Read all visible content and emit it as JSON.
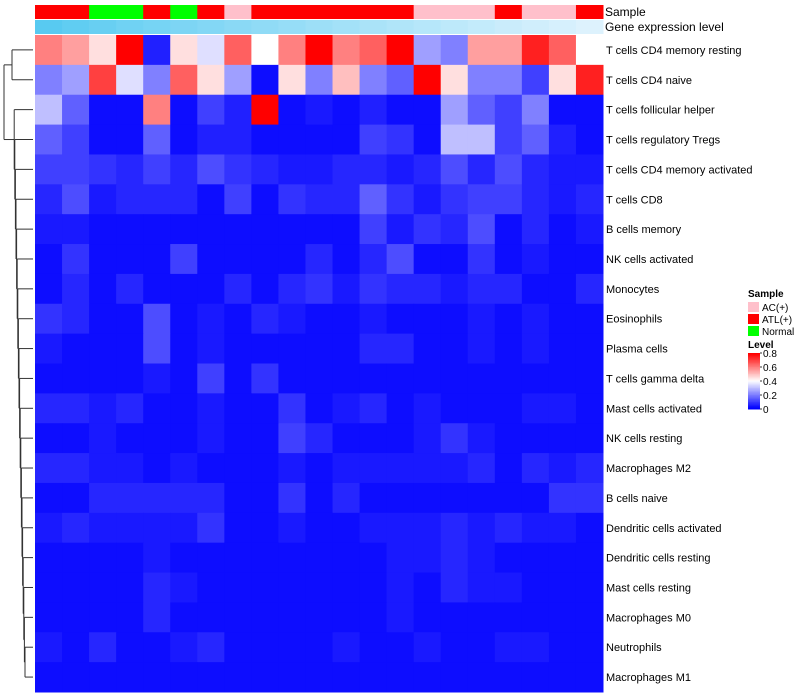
{
  "chart_data": {
    "type": "heatmap",
    "title": "",
    "annotation_tracks": [
      "Sample",
      "Gene expression level"
    ],
    "rows": [
      "T cells CD4 memory resting",
      "T cells CD4 naive",
      "T cells follicular helper",
      "T cells regulatory  Tregs",
      "T cells CD4 memory activated",
      "T cells CD8",
      "B cells memory",
      "NK cells activated",
      "Monocytes",
      "Eosinophils",
      "Plasma cells",
      "T cells gamma delta",
      "Mast cells activated",
      "NK cells resting",
      "Macrophages M2",
      "B cells naive",
      "Dendritic cells activated",
      "Dendritic cells resting",
      "Mast cells resting",
      "Macrophages M0",
      "Neutrophils",
      "Macrophages M1"
    ],
    "sample_groups": [
      "ATL",
      "ATL",
      "Normal",
      "Normal",
      "ATL",
      "Normal",
      "ATL",
      "AC",
      "ATL",
      "ATL",
      "ATL",
      "ATL",
      "ATL",
      "ATL",
      "AC",
      "AC",
      "AC",
      "ATL",
      "AC",
      "AC",
      "ATL"
    ],
    "expression_levels": [
      0.95,
      0.9,
      0.85,
      0.8,
      0.76,
      0.72,
      0.68,
      0.64,
      0.6,
      0.56,
      0.52,
      0.48,
      0.44,
      0.4,
      0.36,
      0.32,
      0.28,
      0.24,
      0.2,
      0.16,
      0.12
    ],
    "values": [
      [
        0.6,
        0.55,
        0.45,
        0.8,
        0.05,
        0.45,
        0.35,
        0.65,
        0.4,
        0.6,
        0.8,
        0.6,
        0.65,
        0.8,
        0.25,
        0.2,
        0.55,
        0.55,
        0.75,
        0.65,
        0.4
      ],
      [
        0.2,
        0.25,
        0.7,
        0.35,
        0.2,
        0.65,
        0.45,
        0.25,
        0.02,
        0.45,
        0.2,
        0.5,
        0.2,
        0.15,
        0.8,
        0.45,
        0.2,
        0.2,
        0.1,
        0.45,
        0.75
      ],
      [
        0.3,
        0.15,
        0.02,
        0.02,
        0.6,
        0.02,
        0.1,
        0.05,
        0.8,
        0.02,
        0.04,
        0.02,
        0.05,
        0.02,
        0.02,
        0.25,
        0.15,
        0.1,
        0.2,
        0.02,
        0.02
      ],
      [
        0.15,
        0.1,
        0.02,
        0.02,
        0.15,
        0.02,
        0.05,
        0.05,
        0.02,
        0.02,
        0.02,
        0.02,
        0.1,
        0.08,
        0.02,
        0.3,
        0.3,
        0.1,
        0.15,
        0.05,
        0.02
      ],
      [
        0.1,
        0.1,
        0.08,
        0.06,
        0.1,
        0.06,
        0.12,
        0.08,
        0.06,
        0.04,
        0.04,
        0.06,
        0.06,
        0.04,
        0.06,
        0.12,
        0.06,
        0.12,
        0.06,
        0.04,
        0.04
      ],
      [
        0.06,
        0.12,
        0.04,
        0.06,
        0.06,
        0.06,
        0.02,
        0.1,
        0.02,
        0.08,
        0.06,
        0.06,
        0.15,
        0.08,
        0.04,
        0.08,
        0.1,
        0.1,
        0.06,
        0.04,
        0.06
      ],
      [
        0.04,
        0.04,
        0.02,
        0.02,
        0.02,
        0.02,
        0.02,
        0.02,
        0.02,
        0.02,
        0.02,
        0.02,
        0.1,
        0.04,
        0.08,
        0.06,
        0.12,
        0.02,
        0.06,
        0.02,
        0.04
      ],
      [
        0.02,
        0.08,
        0.02,
        0.02,
        0.02,
        0.1,
        0.02,
        0.02,
        0.02,
        0.02,
        0.06,
        0.02,
        0.06,
        0.12,
        0.02,
        0.02,
        0.08,
        0.02,
        0.04,
        0.02,
        0.02
      ],
      [
        0.02,
        0.06,
        0.02,
        0.06,
        0.02,
        0.02,
        0.02,
        0.06,
        0.02,
        0.06,
        0.08,
        0.04,
        0.08,
        0.06,
        0.06,
        0.04,
        0.06,
        0.06,
        0.02,
        0.02,
        0.06
      ],
      [
        0.08,
        0.06,
        0.02,
        0.02,
        0.12,
        0.02,
        0.04,
        0.02,
        0.06,
        0.04,
        0.02,
        0.02,
        0.04,
        0.02,
        0.02,
        0.02,
        0.04,
        0.02,
        0.04,
        0.02,
        0.02
      ],
      [
        0.04,
        0.02,
        0.02,
        0.02,
        0.12,
        0.02,
        0.04,
        0.02,
        0.02,
        0.02,
        0.02,
        0.02,
        0.06,
        0.06,
        0.02,
        0.02,
        0.04,
        0.02,
        0.04,
        0.02,
        0.02
      ],
      [
        0.02,
        0.02,
        0.02,
        0.02,
        0.04,
        0.02,
        0.1,
        0.02,
        0.08,
        0.02,
        0.02,
        0.02,
        0.02,
        0.02,
        0.02,
        0.02,
        0.02,
        0.02,
        0.02,
        0.02,
        0.02
      ],
      [
        0.06,
        0.06,
        0.04,
        0.06,
        0.02,
        0.02,
        0.04,
        0.02,
        0.02,
        0.08,
        0.02,
        0.04,
        0.06,
        0.02,
        0.04,
        0.02,
        0.02,
        0.02,
        0.04,
        0.04,
        0.02
      ],
      [
        0.02,
        0.02,
        0.04,
        0.02,
        0.02,
        0.02,
        0.04,
        0.02,
        0.02,
        0.1,
        0.06,
        0.02,
        0.02,
        0.02,
        0.04,
        0.08,
        0.04,
        0.02,
        0.02,
        0.02,
        0.02
      ],
      [
        0.06,
        0.06,
        0.04,
        0.04,
        0.02,
        0.04,
        0.02,
        0.02,
        0.02,
        0.04,
        0.02,
        0.04,
        0.04,
        0.04,
        0.04,
        0.04,
        0.06,
        0.02,
        0.06,
        0.04,
        0.06
      ],
      [
        0.02,
        0.02,
        0.06,
        0.06,
        0.06,
        0.06,
        0.06,
        0.02,
        0.02,
        0.08,
        0.02,
        0.06,
        0.02,
        0.02,
        0.02,
        0.02,
        0.02,
        0.02,
        0.02,
        0.08,
        0.08
      ],
      [
        0.04,
        0.06,
        0.04,
        0.04,
        0.04,
        0.04,
        0.08,
        0.02,
        0.02,
        0.04,
        0.02,
        0.02,
        0.04,
        0.04,
        0.04,
        0.06,
        0.04,
        0.06,
        0.04,
        0.04,
        0.02
      ],
      [
        0.02,
        0.02,
        0.02,
        0.02,
        0.04,
        0.02,
        0.02,
        0.02,
        0.02,
        0.02,
        0.02,
        0.02,
        0.02,
        0.04,
        0.04,
        0.06,
        0.04,
        0.02,
        0.02,
        0.02,
        0.02
      ],
      [
        0.02,
        0.02,
        0.02,
        0.02,
        0.06,
        0.04,
        0.02,
        0.02,
        0.02,
        0.02,
        0.02,
        0.02,
        0.02,
        0.04,
        0.02,
        0.06,
        0.04,
        0.04,
        0.02,
        0.02,
        0.02
      ],
      [
        0.02,
        0.02,
        0.02,
        0.02,
        0.06,
        0.02,
        0.02,
        0.02,
        0.02,
        0.02,
        0.02,
        0.02,
        0.02,
        0.04,
        0.02,
        0.02,
        0.02,
        0.02,
        0.02,
        0.02,
        0.02
      ],
      [
        0.04,
        0.02,
        0.06,
        0.02,
        0.02,
        0.04,
        0.06,
        0.02,
        0.02,
        0.02,
        0.02,
        0.04,
        0.02,
        0.02,
        0.04,
        0.02,
        0.02,
        0.04,
        0.04,
        0.02,
        0.02
      ],
      [
        0.02,
        0.02,
        0.02,
        0.02,
        0.02,
        0.02,
        0.02,
        0.02,
        0.02,
        0.02,
        0.02,
        0.02,
        0.02,
        0.02,
        0.02,
        0.02,
        0.02,
        0.02,
        0.02,
        0.02,
        0.02
      ]
    ],
    "color_scale": {
      "min": 0,
      "max": 0.8,
      "low": "#0000ff",
      "mid": "#ffffff",
      "high": "#ff0000"
    },
    "legend": {
      "sample_title": "Sample",
      "sample_items": [
        {
          "label": "AC(+)",
          "key": "AC",
          "color": "#ffc0cb"
        },
        {
          "label": "ATL(+)",
          "key": "ATL",
          "color": "#ff0000"
        },
        {
          "label": "Normal",
          "key": "Normal",
          "color": "#00ff00"
        }
      ],
      "level_title": "Level",
      "level_ticks": [
        {
          "value": 0.8,
          "label": "0.8"
        },
        {
          "value": 0.6,
          "label": "0.6"
        },
        {
          "value": 0.4,
          "label": "0.4"
        },
        {
          "value": 0.2,
          "label": "0.2"
        },
        {
          "value": 0,
          "label": "0"
        }
      ]
    },
    "expression_color_low": "#f0f8ff",
    "expression_color_high": "#50c8f0"
  }
}
